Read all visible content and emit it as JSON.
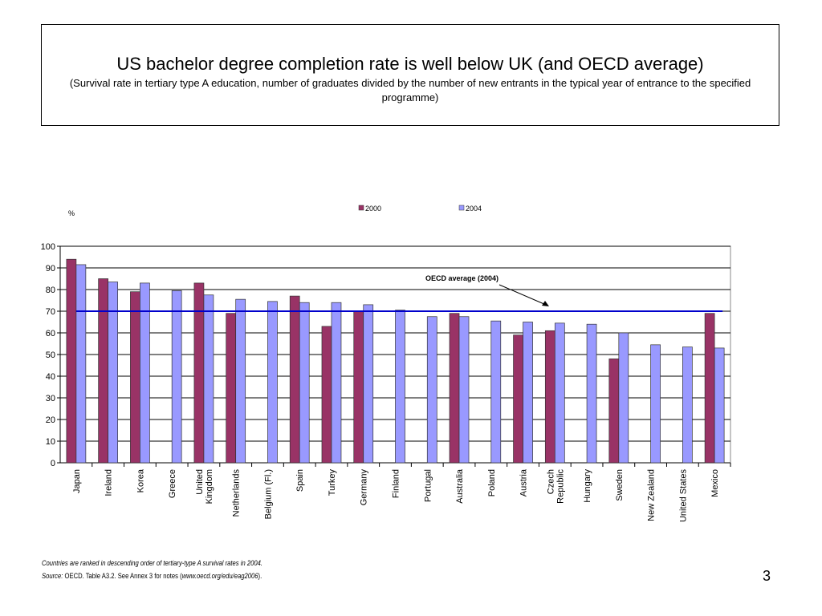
{
  "title": "US bachelor degree completion rate is well below UK (and OECD average)",
  "subtitle": "(Survival rate in tertiary type A education, number of graduates divided by the number of new entrants in the typical year of entrance to the specified programme)",
  "notes": {
    "ranking": "Countries are ranked in descending order of tertiary-type A survival rates in 2004.",
    "source_label": "Source:",
    "source_text": "OECD. Table A3.2. See Annex 3 for notes (",
    "source_url": "www.oecd.org/edu/eag2006",
    "source_end": ")."
  },
  "page_number": "3",
  "chart_data": {
    "type": "bar",
    "ylabel": "%",
    "ylim": [
      0,
      100
    ],
    "yticks": [
      0,
      10,
      20,
      30,
      40,
      50,
      60,
      70,
      80,
      90,
      100
    ],
    "grid": true,
    "legend_placement": "top",
    "categories": [
      "Japan",
      "Ireland",
      "Korea",
      "Greece",
      "United Kingdom",
      "Netherlands",
      "Belgium (Fl.)",
      "Spain",
      "Turkey",
      "Germany",
      "Finland",
      "Portugal",
      "Australia",
      "Poland",
      "Austria",
      "Czech Republic",
      "Hungary",
      "Sweden",
      "New Zealand",
      "United States",
      "Mexico"
    ],
    "series": [
      {
        "name": "2000",
        "color": "#993366",
        "values": [
          94,
          85,
          79,
          null,
          83,
          69,
          null,
          77,
          63,
          70,
          null,
          null,
          69,
          null,
          59,
          61,
          null,
          48,
          null,
          null,
          69
        ]
      },
      {
        "name": "2004",
        "color": "#9999ff",
        "values": [
          91.5,
          83.5,
          83,
          79.5,
          77.5,
          75.5,
          74.5,
          74,
          74,
          73,
          70.5,
          67.5,
          67.5,
          65.5,
          65,
          64.5,
          64,
          60,
          54.5,
          53.5,
          53
        ]
      }
    ],
    "reference_line": {
      "label": "OECD average (2004)",
      "value": 70,
      "color": "#0000cc"
    }
  }
}
